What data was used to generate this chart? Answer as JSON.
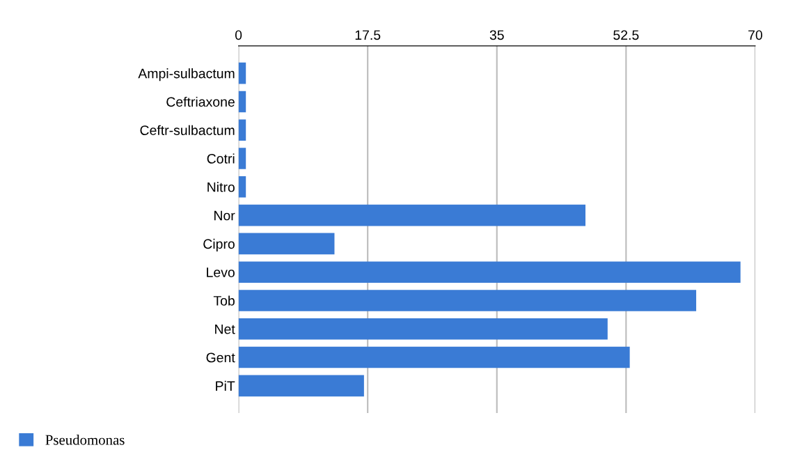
{
  "chart_data": {
    "type": "bar",
    "orientation": "horizontal",
    "categories": [
      "Ampi-sulbactum",
      "Ceftriaxone",
      "Ceftr-sulbactum",
      "Cotri",
      "Nitro",
      "Nor",
      "Cipro",
      "Levo",
      "Tob",
      "Net",
      "Gent",
      "PiT"
    ],
    "series": [
      {
        "name": "Pseudomonas",
        "color": "#3a7bd5",
        "values": [
          1,
          1,
          1,
          1,
          1,
          47,
          13,
          68,
          62,
          50,
          53,
          17
        ]
      }
    ],
    "xlim": [
      0,
      70
    ],
    "xticks": [
      0,
      17.5,
      35,
      52.5,
      70
    ],
    "grid": "x",
    "legend": "bottom left"
  }
}
